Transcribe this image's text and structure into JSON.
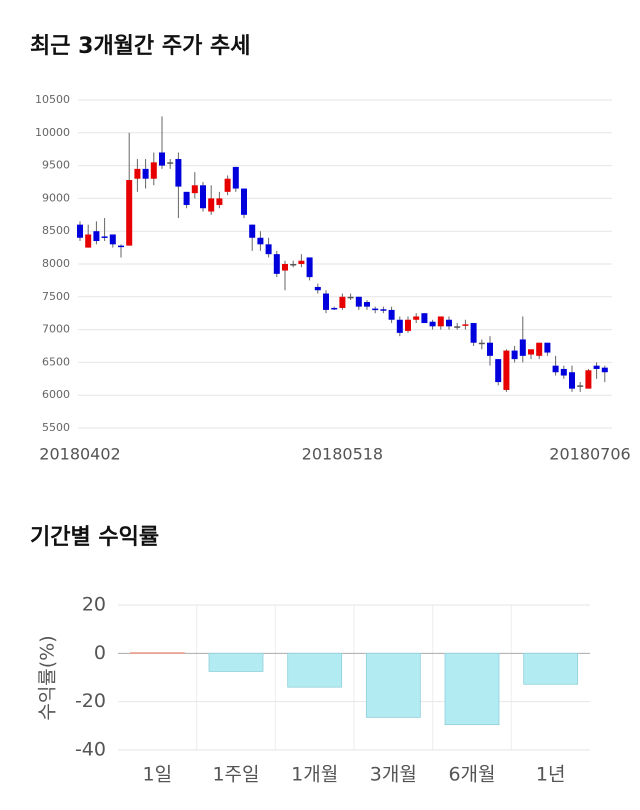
{
  "chart_data": [
    {
      "type": "candlestick",
      "title": "최근 3개월간 주가 추세",
      "categories": [
        "20180402",
        null,
        null,
        null,
        null,
        null,
        null,
        null,
        null,
        null,
        null,
        null,
        null,
        null,
        null,
        null,
        null,
        null,
        null,
        null,
        null,
        null,
        null,
        null,
        null,
        null,
        null,
        null,
        null,
        null,
        null,
        null,
        "20180518",
        null,
        null,
        null,
        null,
        null,
        null,
        null,
        null,
        null,
        null,
        null,
        null,
        null,
        null,
        null,
        null,
        null,
        null,
        null,
        null,
        null,
        null,
        null,
        null,
        null,
        null,
        null,
        null,
        null,
        null,
        "20180706",
        null
      ],
      "open": [
        8600,
        8250,
        8500,
        8420,
        8450,
        8280,
        8280,
        9300,
        9450,
        9300,
        9700,
        9550,
        9600,
        9100,
        9080,
        9200,
        8800,
        8900,
        9100,
        9480,
        9150,
        8600,
        8400,
        8300,
        8150,
        7900,
        8000,
        8000,
        8100,
        7650,
        7550,
        7330,
        7330,
        7500,
        7500,
        7420,
        7320,
        7310,
        7300,
        7150,
        6980,
        7150,
        7250,
        7120,
        7050,
        7150,
        7050,
        7070,
        7100,
        6800,
        6800,
        6550,
        6080,
        6680,
        6850,
        6620,
        6600,
        6800,
        6450,
        6400,
        6350,
        6150,
        6100,
        6450,
        6420
      ],
      "high": [
        8650,
        8600,
        8650,
        8700,
        8450,
        8300,
        10000,
        9600,
        9600,
        9700,
        10250,
        9600,
        9700,
        9100,
        9400,
        9250,
        9200,
        9100,
        9350,
        9480,
        9150,
        8600,
        8500,
        8400,
        8200,
        8050,
        8050,
        8150,
        8100,
        7700,
        7600,
        7350,
        7550,
        7550,
        7500,
        7450,
        7350,
        7350,
        7350,
        7200,
        7200,
        7250,
        7250,
        7150,
        7200,
        7200,
        7100,
        7150,
        7100,
        6850,
        6900,
        6550,
        6700,
        6750,
        7200,
        6700,
        6800,
        6800,
        6600,
        6450,
        6450,
        6200,
        6400,
        6500,
        6450
      ],
      "low": [
        8350,
        8250,
        8300,
        8350,
        8250,
        8100,
        8280,
        9100,
        9150,
        9200,
        9450,
        9450,
        8700,
        8850,
        9000,
        8800,
        8750,
        8850,
        9050,
        9100,
        8700,
        8200,
        8200,
        8100,
        7800,
        7600,
        7950,
        7950,
        7750,
        7550,
        7250,
        7300,
        7300,
        7450,
        7300,
        7300,
        7250,
        7250,
        7100,
        6900,
        6950,
        7100,
        7100,
        7000,
        7000,
        7000,
        7000,
        7000,
        6750,
        6700,
        6450,
        6150,
        6050,
        6500,
        6500,
        6550,
        6550,
        6600,
        6300,
        6250,
        6050,
        6050,
        6100,
        6250,
        6200
      ],
      "close": [
        8400,
        8450,
        8350,
        8400,
        8300,
        8270,
        9280,
        9450,
        9300,
        9550,
        9500,
        9550,
        9180,
        8900,
        9200,
        8850,
        9000,
        9000,
        9300,
        9150,
        8750,
        8400,
        8300,
        8150,
        7850,
        8000,
        8000,
        8050,
        7800,
        7600,
        7300,
        7320,
        7500,
        7500,
        7350,
        7350,
        7300,
        7300,
        7150,
        6950,
        7150,
        7200,
        7100,
        7050,
        7200,
        7050,
        7050,
        7080,
        6800,
        6800,
        6600,
        6200,
        6680,
        6550,
        6600,
        6700,
        6800,
        6650,
        6350,
        6300,
        6100,
        6150,
        6380,
        6400,
        6350
      ],
      "up_color": "#e60000",
      "down_color": "#0000dc",
      "ylim": [
        5500,
        10500
      ],
      "yticks": [
        5500,
        6000,
        6500,
        7000,
        7500,
        8000,
        8500,
        9000,
        9500,
        10000,
        10500
      ],
      "grid": true
    },
    {
      "type": "bar",
      "title": "기간별 수익률",
      "y_label": "수익률(%)",
      "categories": [
        "1일",
        "1주일",
        "1개월",
        "3개월",
        "6개월",
        "1년"
      ],
      "values": [
        0.3,
        -7.5,
        -14,
        -26.5,
        -29.5,
        -12.8
      ],
      "positive_color": "#f4b4aa",
      "negative_color": "#b2ebf2",
      "ylim": [
        -40,
        20
      ],
      "yticks": [
        -40,
        -20,
        0,
        20
      ],
      "grid": true
    }
  ]
}
